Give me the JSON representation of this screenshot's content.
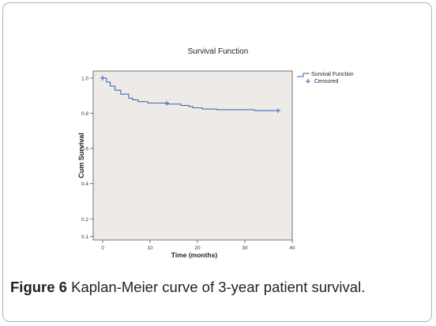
{
  "figure": {
    "caption_label": "Figure 6",
    "caption_text": "Kaplan-Meier curve of 3-year patient survival."
  },
  "chart_data": {
    "type": "line",
    "title": "Survival Function",
    "xlabel": "Time (months)",
    "ylabel": "Cum Survival",
    "xlim": [
      -2,
      40
    ],
    "ylim": [
      0.08,
      1.04
    ],
    "x_ticks": [
      0,
      10,
      20,
      30,
      40
    ],
    "x_tick_labels": [
      "0",
      "10",
      "20",
      "30",
      "40"
    ],
    "y_ticks": [
      1.0,
      0.8,
      0.6,
      0.4,
      0.2,
      0.1
    ],
    "y_tick_labels": [
      "1.0",
      "0.8",
      "0.6",
      "0.4",
      "0.2",
      "0.1"
    ],
    "legend": {
      "position": "top-right",
      "entries": [
        "Survival Function",
        "Censored"
      ]
    },
    "colors": {
      "line": "#3a5fa8",
      "plot_bg": "#eeeae7",
      "frame": "#555555"
    },
    "series": [
      {
        "name": "Survival Function",
        "x": [
          0,
          0.8,
          1.6,
          2.6,
          3.8,
          5.5,
          6.3,
          7.5,
          9.5,
          13.5,
          16.5,
          18.2,
          19.0,
          21.0,
          24.0,
          32.0,
          37.0
        ],
        "y": [
          1.0,
          0.977,
          0.954,
          0.931,
          0.909,
          0.886,
          0.876,
          0.866,
          0.858,
          0.852,
          0.845,
          0.838,
          0.831,
          0.824,
          0.82,
          0.815,
          0.815
        ]
      }
    ],
    "censored": [
      {
        "x": 0,
        "y": 1.0
      },
      {
        "x": 13.5,
        "y": 0.858
      },
      {
        "x": 37.0,
        "y": 0.815
      }
    ]
  }
}
